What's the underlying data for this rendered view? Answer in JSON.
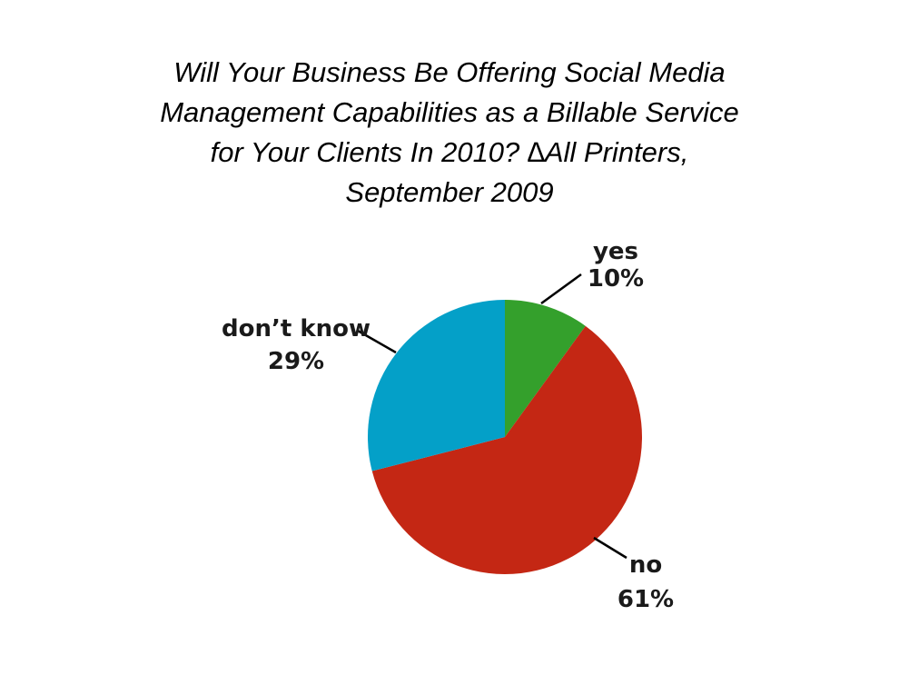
{
  "chart_data": {
    "type": "pie",
    "title_lines": [
      "Will Your Business Be Offering Social Media",
      "Management Capabilities as a Billable Service",
      "for Your Clients In 2010? ∆All Printers,",
      "September 2009"
    ],
    "slices": [
      {
        "label": "yes",
        "value": 10,
        "value_text": "10%",
        "color": "#34a02c"
      },
      {
        "label": "no",
        "value": 61,
        "value_text": "61%",
        "color": "#c42714"
      },
      {
        "label": "don’t know",
        "value": 29,
        "value_text": "29%",
        "color": "#04a0c8"
      }
    ],
    "start": "12 o'clock",
    "direction": "clockwise",
    "legend": "none"
  }
}
